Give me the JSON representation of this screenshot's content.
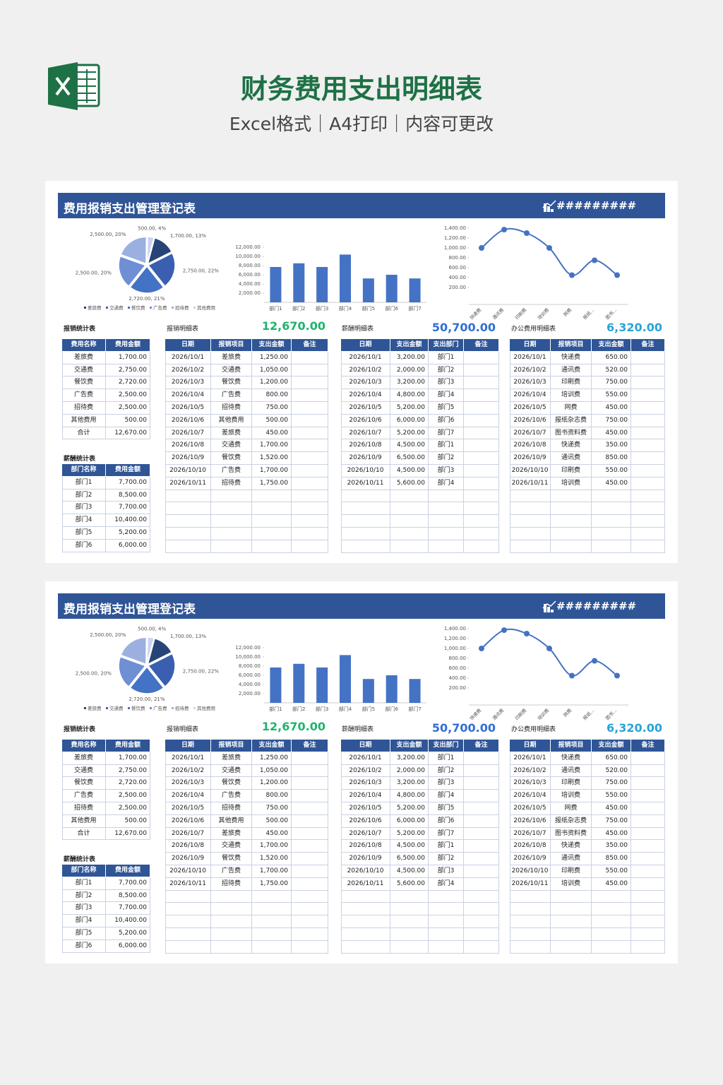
{
  "header": {
    "title": "财务费用支出明细表",
    "subtitle": "Excel格式｜A4打印｜内容可更改"
  },
  "sheet": {
    "title": "费用报销支出管理登记表",
    "code": "#########",
    "pie": {
      "type": "pie",
      "categories": [
        "差旅费",
        "交通费",
        "餐饮费",
        "广告费",
        "招待费",
        "其他费用"
      ],
      "values": [
        1700,
        2750,
        2720,
        2500,
        2500,
        500
      ],
      "value_labels": [
        "1,700.00, 13%",
        "2,750.00, 22%",
        "2,720.00, 21%",
        "2,500.00, 20%",
        "2,500.00, 20%",
        "500.00, 4%"
      ],
      "colors": [
        "#264478",
        "#3a5fb0",
        "#4472c4",
        "#6f8fd4",
        "#9bb0e0",
        "#c9d4ef"
      ]
    },
    "bar": {
      "type": "bar",
      "categories": [
        "部门1",
        "部门2",
        "部门3",
        "部门4",
        "部门5",
        "部门6",
        "部门7"
      ],
      "values": [
        7700,
        8500,
        7700,
        10400,
        5200,
        6000,
        5200
      ],
      "color": "#4472c4",
      "ylim": [
        0,
        12000
      ],
      "yticks": [
        {
          "value": 2000,
          "label": "2,000.00"
        },
        {
          "value": 4000,
          "label": "4,000.00"
        },
        {
          "value": 6000,
          "label": "6,000.00"
        },
        {
          "value": 8000,
          "label": "8,000.00"
        },
        {
          "value": 10000,
          "label": "10,000.00"
        },
        {
          "value": 12000,
          "label": "12,000.00"
        }
      ]
    },
    "line": {
      "type": "line",
      "categories": [
        "快递费",
        "通讯费",
        "印刷费",
        "培训费",
        "网费",
        "报纸...",
        "图书..."
      ],
      "values": [
        1000,
        1370,
        1300,
        1000,
        450,
        750,
        450
      ],
      "color": "#4472c4",
      "ylim": [
        0,
        1400
      ],
      "yticks": [
        {
          "value": 200,
          "label": "200.00"
        },
        {
          "value": 400,
          "label": "400.00"
        },
        {
          "value": 600,
          "label": "600.00"
        },
        {
          "value": 800,
          "label": "800.00"
        },
        {
          "value": 1000,
          "label": "1,000.00"
        },
        {
          "value": 1200,
          "label": "1,200.00"
        },
        {
          "value": 1400,
          "label": "1,400.00"
        }
      ]
    },
    "expense_stats": {
      "title": "报销统计表",
      "columns": [
        "费用名称",
        "费用金额"
      ],
      "rows": [
        [
          "差旅费",
          "1,700.00"
        ],
        [
          "交通费",
          "2,750.00"
        ],
        [
          "餐饮费",
          "2,720.00"
        ],
        [
          "广告费",
          "2,500.00"
        ],
        [
          "招待费",
          "2,500.00"
        ],
        [
          "其他费用",
          "500.00"
        ],
        [
          "合计",
          "12,670.00"
        ]
      ]
    },
    "salary_stats": {
      "title": "薪酬统计表",
      "columns": [
        "部门名称",
        "费用金额"
      ],
      "rows": [
        [
          "部门1",
          "7,700.00"
        ],
        [
          "部门2",
          "8,500.00"
        ],
        [
          "部门3",
          "7,700.00"
        ],
        [
          "部门4",
          "10,400.00"
        ],
        [
          "部门5",
          "5,200.00"
        ],
        [
          "部门6",
          "6,000.00"
        ]
      ]
    },
    "expense_detail": {
      "title": "报销明细表",
      "total": "12,670.00",
      "columns": [
        "日期",
        "报销项目",
        "支出金额",
        "备注"
      ],
      "rows": [
        [
          "2026/10/1",
          "差旅费",
          "1,250.00"
        ],
        [
          "2026/10/2",
          "交通费",
          "1,050.00"
        ],
        [
          "2026/10/3",
          "餐饮费",
          "1,200.00"
        ],
        [
          "2026/10/4",
          "广告费",
          "800.00"
        ],
        [
          "2026/10/5",
          "招待费",
          "750.00"
        ],
        [
          "2026/10/6",
          "其他费用",
          "500.00"
        ],
        [
          "2026/10/7",
          "差旅费",
          "450.00"
        ],
        [
          "2026/10/8",
          "交通费",
          "1,700.00"
        ],
        [
          "2026/10/9",
          "餐饮费",
          "1,520.00"
        ],
        [
          "2026/10/10",
          "广告费",
          "1,700.00"
        ],
        [
          "2026/10/11",
          "招待费",
          "1,750.00"
        ]
      ]
    },
    "salary_detail": {
      "title": "薪酬明细表",
      "total": "50,700.00",
      "columns": [
        "日期",
        "支出金额",
        "支出部门",
        "备注"
      ],
      "rows": [
        [
          "2026/10/1",
          "3,200.00",
          "部门1"
        ],
        [
          "2026/10/2",
          "2,000.00",
          "部门2"
        ],
        [
          "2026/10/3",
          "3,200.00",
          "部门3"
        ],
        [
          "2026/10/4",
          "4,800.00",
          "部门4"
        ],
        [
          "2026/10/5",
          "5,200.00",
          "部门5"
        ],
        [
          "2026/10/6",
          "6,000.00",
          "部门6"
        ],
        [
          "2026/10/7",
          "5,200.00",
          "部门7"
        ],
        [
          "2026/10/8",
          "4,500.00",
          "部门1"
        ],
        [
          "2026/10/9",
          "6,500.00",
          "部门2"
        ],
        [
          "2026/10/10",
          "4,500.00",
          "部门3"
        ],
        [
          "2026/10/11",
          "5,600.00",
          "部门4"
        ]
      ]
    },
    "office_detail": {
      "title": "办公费用明细表",
      "total": "6,320.00",
      "columns": [
        "日期",
        "报销项目",
        "支出金额",
        "备注"
      ],
      "rows": [
        [
          "2026/10/1",
          "快递费",
          "650.00"
        ],
        [
          "2026/10/2",
          "通讯费",
          "520.00"
        ],
        [
          "2026/10/3",
          "印刷费",
          "750.00"
        ],
        [
          "2026/10/4",
          "培训费",
          "550.00"
        ],
        [
          "2026/10/5",
          "网费",
          "450.00"
        ],
        [
          "2026/10/6",
          "报纸杂志费",
          "750.00"
        ],
        [
          "2026/10/7",
          "图书资料费",
          "450.00"
        ],
        [
          "2026/10/8",
          "快递费",
          "350.00"
        ],
        [
          "2026/10/9",
          "通讯费",
          "850.00"
        ],
        [
          "2026/10/10",
          "印刷费",
          "550.00"
        ],
        [
          "2026/10/11",
          "培训费",
          "450.00"
        ]
      ]
    }
  }
}
